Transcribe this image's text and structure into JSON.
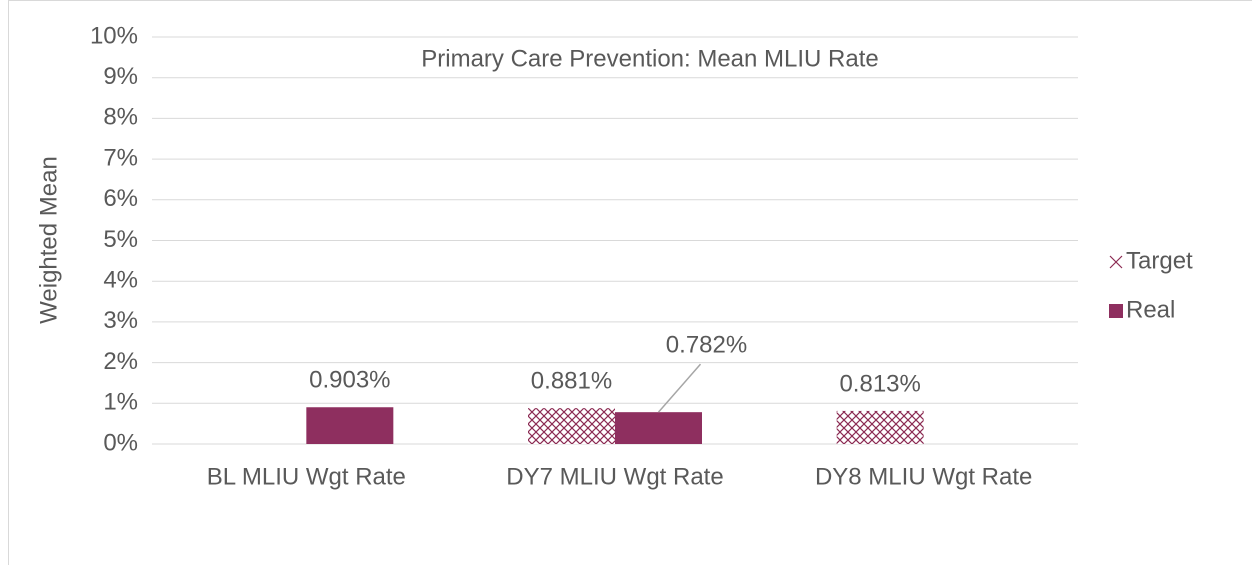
{
  "chart_data": {
    "type": "bar",
    "title": "Primary Care Prevention: Mean MLIU Rate",
    "y_label": "Weighted Mean",
    "categories": [
      "BL MLIU Wgt Rate",
      "DY7 MLIU Wgt Rate",
      "DY8 MLIU Wgt Rate"
    ],
    "series": [
      {
        "name": "Target",
        "color": "#8b2a52",
        "pattern": "crosshatch",
        "values": [
          null,
          0.881,
          0.813
        ],
        "value_labels": [
          null,
          "0.881%",
          "0.813%"
        ]
      },
      {
        "name": "Real",
        "color": "#8e2f5f",
        "values": [
          0.903,
          0.782,
          null
        ],
        "value_labels": [
          "0.903%",
          "0.782%",
          null
        ]
      }
    ],
    "ylim": [
      0,
      10
    ],
    "yticks": [
      {
        "value": 0,
        "label": "0%"
      },
      {
        "value": 1,
        "label": "1%"
      },
      {
        "value": 2,
        "label": "2%"
      },
      {
        "value": 3,
        "label": "3%"
      },
      {
        "value": 4,
        "label": "4%"
      },
      {
        "value": 5,
        "label": "5%"
      },
      {
        "value": 6,
        "label": "6%"
      },
      {
        "value": 7,
        "label": "7%"
      },
      {
        "value": 8,
        "label": "8%"
      },
      {
        "value": 9,
        "label": "9%"
      },
      {
        "value": 10,
        "label": "10%"
      }
    ],
    "grid": true,
    "legend": "right"
  }
}
